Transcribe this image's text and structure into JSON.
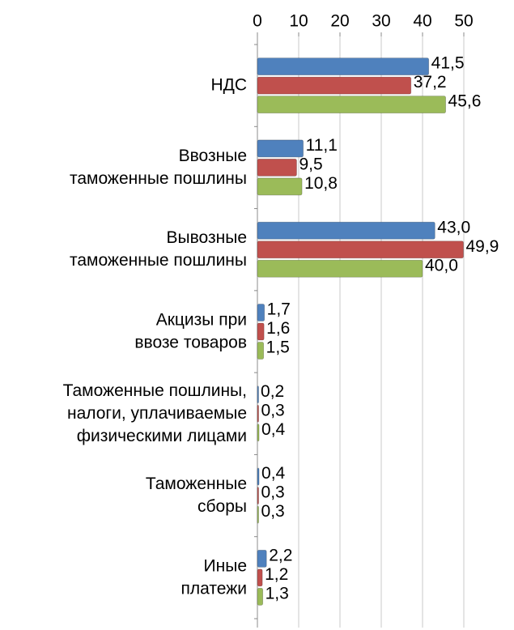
{
  "chart_data": {
    "type": "bar",
    "orientation": "horizontal",
    "categories": [
      "НДС",
      "Ввозные\nтаможенные пошлины",
      "Вывозные\nтаможенные пошлины",
      "Акцизы при\nввозе товаров",
      "Таможенные пошлины,\nналоги, уплачиваемые\nфизическими лицами",
      "Таможенные\nсборы",
      "Иные\nплатежи"
    ],
    "series": [
      {
        "color": "#4f81bd",
        "values": [
          41.5,
          11.1,
          43.0,
          1.7,
          0.2,
          0.4,
          2.2
        ],
        "value_labels": [
          "41,5",
          "11,1",
          "43,0",
          "1,7",
          "0,2",
          "0,4",
          "2,2"
        ]
      },
      {
        "color": "#c0504d",
        "values": [
          37.2,
          9.5,
          49.9,
          1.6,
          0.3,
          0.3,
          1.2
        ],
        "value_labels": [
          "37,2",
          "9,5",
          "49,9",
          "1,6",
          "0,3",
          "0,3",
          "1,2"
        ]
      },
      {
        "color": "#9bbb59",
        "values": [
          45.6,
          10.8,
          40.0,
          1.5,
          0.4,
          0.3,
          1.3
        ],
        "value_labels": [
          "45,6",
          "10,8",
          "40,0",
          "1,5",
          "0,4",
          "0,3",
          "1,3"
        ]
      }
    ],
    "xlim": [
      0,
      50
    ],
    "xticks": [
      0,
      10,
      20,
      30,
      40,
      50
    ],
    "grid": true
  }
}
